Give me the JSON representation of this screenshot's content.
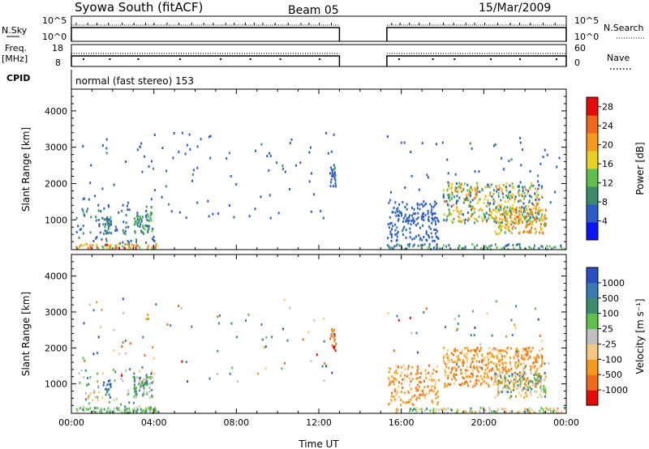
{
  "header": {
    "title": "Syowa South (fitACF)",
    "beam": "Beam 05",
    "date": "15/Mar/2009"
  },
  "top_panels": {
    "nsky_label": "N.Sky",
    "nsearch_label": "N.Search",
    "nsky_ticks": [
      "10^5",
      "10^0"
    ],
    "nsearch_ticks": [
      "10^5",
      "10^0"
    ],
    "freq_label_line1": "Freq.",
    "freq_label_line2": "[MHz]",
    "freq_ticks": [
      "18",
      "8"
    ],
    "nave_label": "Nave",
    "nave_ticks": [
      "60",
      "0"
    ],
    "cpid_label": "CPID",
    "cpid_text": "normal (fast stereo) 153",
    "data_coverage_hours": [
      [
        0,
        13.0
      ],
      [
        15.3,
        24
      ]
    ]
  },
  "chart_data": [
    {
      "type": "heatmap",
      "name": "power",
      "ylabel": "Slant Range [km]",
      "xlabel": "",
      "x_ticks": [
        "00:00",
        "04:00",
        "08:00",
        "12:00",
        "16:00",
        "20:00",
        "00:00"
      ],
      "y_ticks": [
        "1000",
        "2000",
        "3000",
        "4000"
      ],
      "xlim_hours": [
        0,
        24
      ],
      "ylim_km": [
        180,
        4600
      ],
      "colorbar": {
        "label": "Power [dB]",
        "ticks": [
          "4",
          "8",
          "12",
          "16",
          "20",
          "24",
          "28"
        ],
        "range": [
          0,
          30
        ],
        "colors": [
          "#0a14ff",
          "#2a5cc8",
          "#3b8c6e",
          "#5fbf4c",
          "#e8d020",
          "#f59a1a",
          "#f0661a",
          "#e60a0a"
        ]
      },
      "regions": [
        {
          "t": [
            0.2,
            4.2
          ],
          "r": [
            180,
            320
          ],
          "v": [
            12,
            28
          ],
          "d": 0.5
        },
        {
          "t": [
            0.2,
            4.0
          ],
          "r": [
            320,
            1400
          ],
          "v": [
            4,
            10
          ],
          "d": 0.07
        },
        {
          "t": [
            1.5,
            1.9
          ],
          "r": [
            600,
            1100
          ],
          "v": [
            6,
            12
          ],
          "d": 0.35
        },
        {
          "t": [
            3.0,
            3.9
          ],
          "r": [
            600,
            1200
          ],
          "v": [
            6,
            14
          ],
          "d": 0.35
        },
        {
          "t": [
            0.5,
            12.8
          ],
          "r": [
            1000,
            3400
          ],
          "v": [
            4,
            8
          ],
          "d": 0.012
        },
        {
          "t": [
            12.5,
            12.8
          ],
          "r": [
            1900,
            2500
          ],
          "v": [
            4,
            8
          ],
          "d": 0.5
        },
        {
          "t": [
            15.3,
            24
          ],
          "r": [
            180,
            320
          ],
          "v": [
            4,
            14
          ],
          "d": 0.3
        },
        {
          "t": [
            15.3,
            17.8
          ],
          "r": [
            400,
            1500
          ],
          "v": [
            4,
            8
          ],
          "d": 0.2
        },
        {
          "t": [
            18.0,
            22.8
          ],
          "r": [
            900,
            2000
          ],
          "v": [
            4,
            24
          ],
          "d": 0.28
        },
        {
          "t": [
            20.5,
            23.0
          ],
          "r": [
            600,
            1300
          ],
          "v": [
            12,
            26
          ],
          "d": 0.3
        },
        {
          "t": [
            15.3,
            23.8
          ],
          "r": [
            1400,
            3300
          ],
          "v": [
            4,
            8
          ],
          "d": 0.015
        }
      ]
    },
    {
      "type": "heatmap",
      "name": "velocity",
      "ylabel": "Slant Range [km]",
      "xlabel": "Time UT",
      "x_ticks": [
        "00:00",
        "04:00",
        "08:00",
        "12:00",
        "16:00",
        "20:00",
        "00:00"
      ],
      "y_ticks": [
        "1000",
        "2000",
        "3000",
        "4000"
      ],
      "xlim_hours": [
        0,
        24
      ],
      "ylim_km": [
        180,
        4600
      ],
      "colorbar": {
        "label": "Velocity [m s⁻¹]",
        "ticks": [
          "1000",
          "500",
          "100",
          "25",
          "-25",
          "-100",
          "-500",
          "-1000"
        ],
        "colors": [
          "#2a4fc0",
          "#3a7ab8",
          "#3e8c6e",
          "#5ec24a",
          "#c0c0c0",
          "#f5c880",
          "#f59a1a",
          "#f06a1a",
          "#e60a0a"
        ]
      },
      "regions": [
        {
          "t": [
            0.2,
            4.2
          ],
          "r": [
            180,
            320
          ],
          "v": [
            2,
            4
          ],
          "d": 0.5
        },
        {
          "t": [
            0.2,
            4.0
          ],
          "r": [
            320,
            1400
          ],
          "v": [
            1,
            6
          ],
          "d": 0.07
        },
        {
          "t": [
            1.5,
            1.9
          ],
          "r": [
            600,
            1100
          ],
          "v": [
            0,
            2
          ],
          "d": 0.35
        },
        {
          "t": [
            3.0,
            3.9
          ],
          "r": [
            600,
            1200
          ],
          "v": [
            1,
            4
          ],
          "d": 0.35
        },
        {
          "t": [
            0.5,
            12.8
          ],
          "r": [
            1000,
            3400
          ],
          "v": [
            0,
            8
          ],
          "d": 0.012
        },
        {
          "t": [
            12.5,
            12.8
          ],
          "r": [
            1900,
            2500
          ],
          "v": [
            6,
            8
          ],
          "d": 0.5
        },
        {
          "t": [
            15.3,
            24
          ],
          "r": [
            180,
            320
          ],
          "v": [
            2,
            6
          ],
          "d": 0.3
        },
        {
          "t": [
            15.3,
            17.8
          ],
          "r": [
            400,
            1500
          ],
          "v": [
            5,
            7
          ],
          "d": 0.2
        },
        {
          "t": [
            18.0,
            22.8
          ],
          "r": [
            900,
            2000
          ],
          "v": [
            5,
            7
          ],
          "d": 0.28
        },
        {
          "t": [
            20.5,
            23.0
          ],
          "r": [
            600,
            1300
          ],
          "v": [
            1,
            6
          ],
          "d": 0.3
        },
        {
          "t": [
            15.3,
            23.8
          ],
          "r": [
            1400,
            3300
          ],
          "v": [
            0,
            8
          ],
          "d": 0.015
        }
      ]
    }
  ]
}
